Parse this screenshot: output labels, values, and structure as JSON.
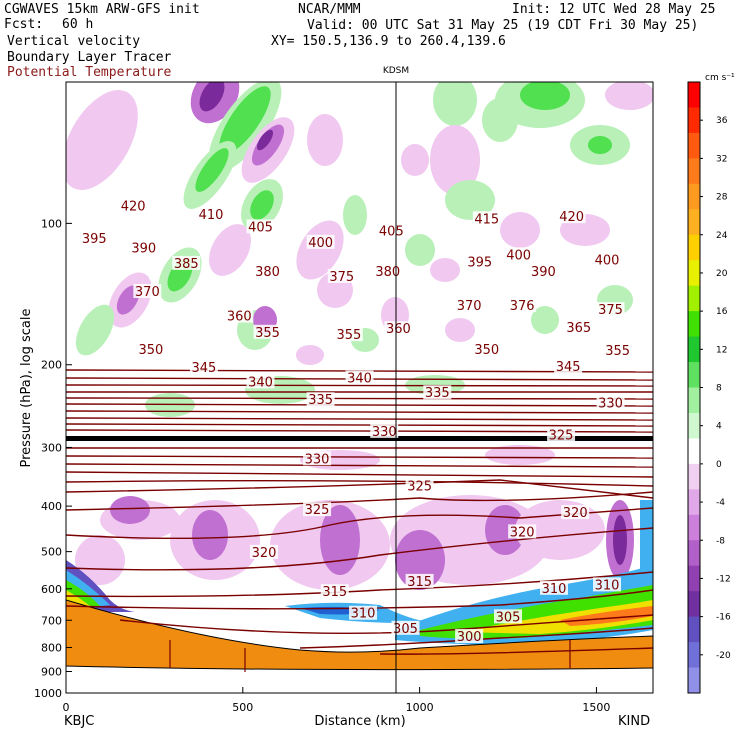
{
  "header": {
    "model": "CGWAVES 15km ARW-GFS init",
    "fcst_label": "Fcst:",
    "fcst_value": "60 h",
    "field1": "Vertical velocity",
    "field2": "Boundary Layer Tracer",
    "field3": "Potential Temperature",
    "org": "NCAR/MMM",
    "init": "Init: 12 UTC Wed 28 May 25",
    "valid": "Valid: 00 UTC Sat 31 May 25 (19 CDT Fri 30 May 25)",
    "xy": "XY= 150.5,136.9 to 260.4,139.6",
    "station_marker": "KDSM"
  },
  "colors": {
    "theta": "#7a0000",
    "up_light": "#b8f0b8",
    "up_mid": "#50e050",
    "up_dark": "#10c020",
    "down_light": "#f0c8f0",
    "down_mid": "#c070d0",
    "down_dark": "#7a2a9a",
    "terrain": "#f08c10"
  },
  "chart_data": {
    "type": "heatmap",
    "xlabel": "Distance (km)",
    "ylabel": "Pressure (hPa), log scale",
    "xlim": [
      0,
      1660
    ],
    "ylim": [
      1000,
      50
    ],
    "y_scale": "log",
    "x_ticks": [
      0,
      500,
      1000,
      1500
    ],
    "y_ticks": [
      100,
      200,
      300,
      400,
      500,
      600,
      700,
      800,
      900,
      1000
    ],
    "x_endpoints": [
      "KBJC",
      "KIND"
    ],
    "station_line_km": 940,
    "colorbar": {
      "unit": "cm s⁻¹",
      "ticks": [
        36,
        32,
        28,
        24,
        20,
        16,
        12,
        8,
        4,
        0,
        -4,
        -8,
        -12,
        -16,
        -20
      ],
      "colors": [
        "#ff0000",
        "#ff2a00",
        "#ff5a10",
        "#ff7a1a",
        "#ff9a20",
        "#ffb020",
        "#ffd000",
        "#e8f000",
        "#a0f000",
        "#40e000",
        "#20c830",
        "#60e060",
        "#a0f0a0",
        "#d0f8d0",
        "#ffffff",
        "#f0d0f0",
        "#e0a8e8",
        "#cc80dc",
        "#b060c8",
        "#9040b0",
        "#7030a0",
        "#6050c0",
        "#7070d8",
        "#9090e8"
      ]
    },
    "theta_labels": [
      {
        "km": 190,
        "p": 92,
        "label": "420"
      },
      {
        "km": 410,
        "p": 96,
        "label": "410"
      },
      {
        "km": 550,
        "p": 102,
        "label": "405"
      },
      {
        "km": 920,
        "p": 104,
        "label": "405"
      },
      {
        "km": 1190,
        "p": 98,
        "label": "415"
      },
      {
        "km": 1430,
        "p": 97,
        "label": "420"
      },
      {
        "km": 80,
        "p": 108,
        "label": "395"
      },
      {
        "km": 220,
        "p": 113,
        "label": "390"
      },
      {
        "km": 720,
        "p": 110,
        "label": "400"
      },
      {
        "km": 340,
        "p": 122,
        "label": "385"
      },
      {
        "km": 570,
        "p": 127,
        "label": "380"
      },
      {
        "km": 780,
        "p": 130,
        "label": "375"
      },
      {
        "km": 910,
        "p": 127,
        "label": "380"
      },
      {
        "km": 1170,
        "p": 121,
        "label": "395"
      },
      {
        "km": 1280,
        "p": 117,
        "label": "400"
      },
      {
        "km": 1350,
        "p": 127,
        "label": "390"
      },
      {
        "km": 1530,
        "p": 120,
        "label": "400"
      },
      {
        "km": 230,
        "p": 140,
        "label": "370"
      },
      {
        "km": 490,
        "p": 158,
        "label": "360"
      },
      {
        "km": 570,
        "p": 171,
        "label": "355"
      },
      {
        "km": 800,
        "p": 173,
        "label": "355"
      },
      {
        "km": 940,
        "p": 168,
        "label": "360"
      },
      {
        "km": 1140,
        "p": 150,
        "label": "370"
      },
      {
        "km": 1290,
        "p": 150,
        "label": "376"
      },
      {
        "km": 1450,
        "p": 167,
        "label": "365"
      },
      {
        "km": 1540,
        "p": 153,
        "label": "375"
      },
      {
        "km": 1560,
        "p": 187,
        "label": "355"
      },
      {
        "km": 240,
        "p": 186,
        "label": "350"
      },
      {
        "km": 1190,
        "p": 186,
        "label": "350"
      },
      {
        "km": 390,
        "p": 203,
        "label": "345"
      },
      {
        "km": 1420,
        "p": 202,
        "label": "345"
      },
      {
        "km": 550,
        "p": 218,
        "label": "340"
      },
      {
        "km": 830,
        "p": 214,
        "label": "340"
      },
      {
        "km": 720,
        "p": 238,
        "label": "335"
      },
      {
        "km": 1050,
        "p": 230,
        "label": "335"
      },
      {
        "km": 1540,
        "p": 242,
        "label": "330"
      },
      {
        "km": 900,
        "p": 278,
        "label": "330"
      },
      {
        "km": 710,
        "p": 318,
        "label": "330"
      },
      {
        "km": 1400,
        "p": 283,
        "label": "325"
      },
      {
        "km": 1000,
        "p": 363,
        "label": "325"
      },
      {
        "km": 710,
        "p": 408,
        "label": "325"
      },
      {
        "km": 1290,
        "p": 455,
        "label": "320"
      },
      {
        "km": 1440,
        "p": 414,
        "label": "320"
      },
      {
        "km": 560,
        "p": 503,
        "label": "320"
      },
      {
        "km": 1000,
        "p": 580,
        "label": "315"
      },
      {
        "km": 760,
        "p": 610,
        "label": "315"
      },
      {
        "km": 1380,
        "p": 600,
        "label": "310"
      },
      {
        "km": 1530,
        "p": 590,
        "label": "310"
      },
      {
        "km": 840,
        "p": 678,
        "label": "310"
      },
      {
        "km": 1250,
        "p": 690,
        "label": "305"
      },
      {
        "km": 960,
        "p": 730,
        "label": "305"
      },
      {
        "km": 1140,
        "p": 760,
        "label": "300"
      }
    ]
  }
}
